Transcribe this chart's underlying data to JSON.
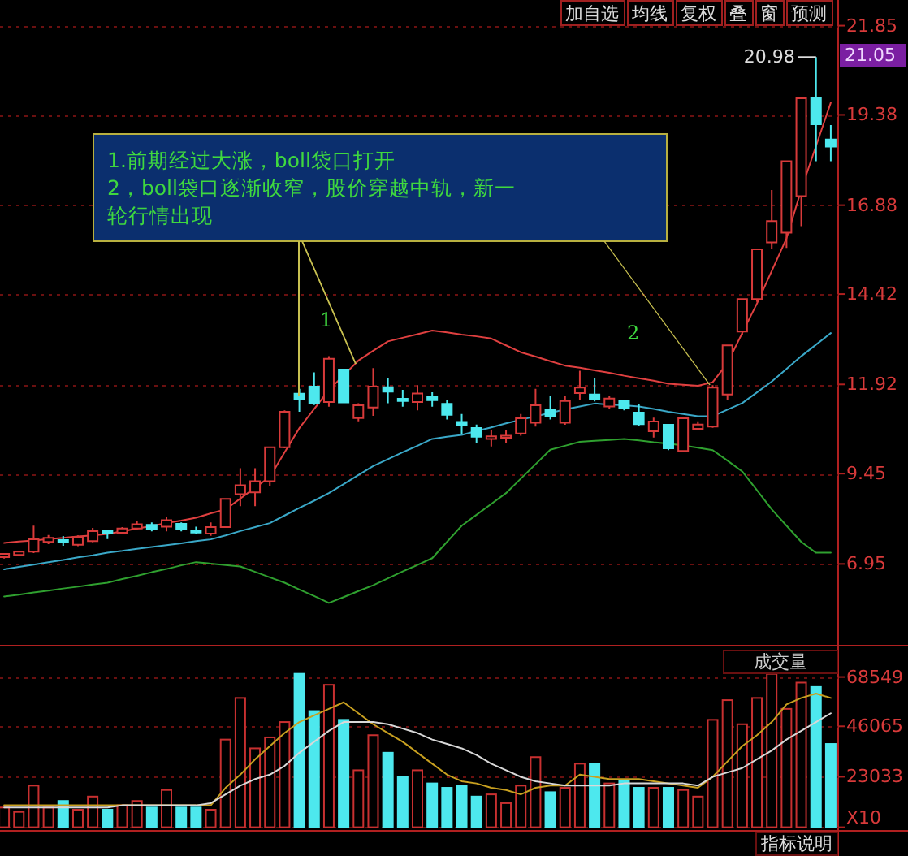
{
  "chart_data": [
    {
      "type": "candlestick",
      "categories": [
        null,
        null,
        null,
        null,
        null,
        null,
        null,
        null,
        null,
        null,
        null,
        null,
        null,
        null,
        null,
        null,
        null,
        null,
        null,
        null,
        null,
        null,
        null,
        null,
        null,
        null,
        null,
        null,
        null,
        null,
        null,
        null,
        null,
        null,
        null,
        null,
        null,
        null,
        null,
        null,
        null,
        null,
        null,
        null,
        null,
        null,
        null,
        null,
        null,
        null,
        null,
        null,
        null,
        null,
        null,
        null,
        null
      ],
      "ohlc": [
        [
          7.14,
          7.25,
          7.1,
          7.23
        ],
        [
          7.2,
          7.32,
          7.16,
          7.29
        ],
        [
          7.29,
          8.01,
          7.25,
          7.63
        ],
        [
          7.56,
          7.75,
          7.5,
          7.67
        ],
        [
          7.61,
          7.72,
          7.45,
          7.56
        ],
        [
          7.48,
          7.74,
          7.44,
          7.7
        ],
        [
          7.58,
          7.95,
          7.55,
          7.86
        ],
        [
          7.86,
          7.9,
          7.64,
          7.79
        ],
        [
          7.81,
          7.97,
          7.78,
          7.93
        ],
        [
          7.93,
          8.15,
          7.9,
          8.05
        ],
        [
          8.03,
          8.1,
          7.85,
          7.92
        ],
        [
          7.98,
          8.25,
          7.85,
          8.16
        ],
        [
          8.06,
          8.1,
          7.85,
          7.92
        ],
        [
          7.88,
          7.98,
          7.77,
          7.82
        ],
        [
          7.79,
          8.1,
          7.73,
          7.97
        ],
        [
          7.97,
          8.75,
          7.95,
          8.75
        ],
        [
          8.88,
          9.6,
          8.55,
          9.13
        ],
        [
          8.93,
          9.6,
          8.55,
          9.24
        ],
        [
          9.24,
          10.18,
          9.1,
          10.18
        ],
        [
          10.18,
          11.2,
          10.15,
          11.16
        ],
        [
          11.66,
          11.8,
          11.16,
          11.5
        ],
        [
          11.86,
          12.25,
          11.35,
          11.4
        ],
        [
          11.43,
          12.7,
          11.3,
          12.63
        ],
        [
          12.33,
          12.33,
          11.4,
          11.42
        ],
        [
          10.99,
          11.4,
          10.9,
          11.34
        ],
        [
          11.28,
          12.37,
          11.05,
          11.86
        ],
        [
          11.84,
          12.1,
          11.4,
          11.72
        ],
        [
          11.52,
          11.77,
          11.3,
          11.46
        ],
        [
          11.43,
          11.9,
          11.2,
          11.67
        ],
        [
          11.57,
          11.7,
          11.3,
          11.48
        ],
        [
          11.38,
          11.5,
          10.95,
          11.08
        ],
        [
          10.88,
          11.1,
          10.55,
          10.78
        ],
        [
          10.71,
          10.81,
          10.3,
          10.47
        ],
        [
          10.41,
          10.66,
          10.2,
          10.48
        ],
        [
          10.44,
          10.66,
          10.3,
          10.5
        ],
        [
          10.56,
          11.1,
          10.5,
          10.98
        ],
        [
          10.86,
          11.8,
          10.75,
          11.34
        ],
        [
          11.23,
          11.6,
          10.95,
          11.04
        ],
        [
          10.86,
          11.6,
          10.8,
          11.46
        ],
        [
          11.68,
          12.3,
          11.5,
          11.83
        ],
        [
          11.64,
          12.1,
          11.45,
          11.52
        ],
        [
          11.31,
          11.6,
          11.25,
          11.53
        ],
        [
          11.46,
          11.5,
          11.2,
          11.25
        ],
        [
          11.14,
          11.37,
          10.77,
          10.82
        ],
        [
          10.62,
          11.0,
          10.45,
          10.89
        ],
        [
          10.8,
          10.8,
          10.1,
          10.15
        ],
        [
          10.08,
          10.98,
          10.05,
          10.98
        ],
        [
          10.69,
          10.9,
          10.65,
          10.81
        ],
        [
          10.75,
          11.9,
          10.72,
          11.83
        ],
        [
          11.64,
          13.0,
          11.5,
          13.0
        ],
        [
          13.38,
          14.28,
          13.3,
          14.28
        ],
        [
          14.28,
          15.66,
          14.2,
          15.66
        ],
        [
          15.85,
          17.3,
          15.66,
          16.44
        ],
        [
          16.12,
          18.1,
          15.7,
          18.1
        ],
        [
          17.13,
          19.84,
          16.3,
          19.84
        ],
        [
          19.84,
          20.98,
          18.1,
          19.12
        ],
        [
          18.7,
          19.1,
          18.1,
          18.5
        ]
      ],
      "colors": [
        "#d83a3a",
        "#d83a3a",
        "#d83a3a",
        "#d83a3a",
        "#4de8ee",
        "#d83a3a",
        "#d83a3a",
        "#4de8ee",
        "#d83a3a",
        "#d83a3a",
        "#4de8ee",
        "#d83a3a",
        "#4de8ee",
        "#4de8ee",
        "#d83a3a",
        "#d83a3a",
        "#d83a3a",
        "#d83a3a",
        "#d83a3a",
        "#d83a3a",
        "#4de8ee",
        "#4de8ee",
        "#d83a3a",
        "#4de8ee",
        "#d83a3a",
        "#d83a3a",
        "#4de8ee",
        "#4de8ee",
        "#d83a3a",
        "#4de8ee",
        "#4de8ee",
        "#4de8ee",
        "#4de8ee",
        "#d83a3a",
        "#d83a3a",
        "#d83a3a",
        "#d83a3a",
        "#4de8ee",
        "#d83a3a",
        "#d83a3a",
        "#4de8ee",
        "#d83a3a",
        "#4de8ee",
        "#4de8ee",
        "#d83a3a",
        "#4de8ee",
        "#d83a3a",
        "#d83a3a",
        "#d83a3a",
        "#d83a3a",
        "#d83a3a",
        "#d83a3a",
        "#d83a3a",
        "#d83a3a",
        "#d83a3a",
        "#4de8ee",
        "#4de8ee"
      ],
      "series": [
        {
          "type": "line",
          "color": "#e04040",
          "values": [
            7.53,
            7.57,
            7.6,
            7.64,
            7.67,
            7.71,
            7.74,
            7.78,
            7.85,
            7.93,
            8.0,
            8.08,
            8.15,
            8.23,
            8.35,
            8.46,
            8.76,
            9.06,
            9.36,
            10.04,
            10.71,
            11.24,
            11.76,
            12.17,
            12.58,
            12.85,
            13.11,
            13.21,
            13.31,
            13.41,
            13.36,
            13.3,
            13.25,
            13.19,
            13.0,
            12.81,
            12.69,
            12.56,
            12.44,
            12.38,
            12.31,
            12.24,
            12.16,
            12.09,
            12.02,
            11.94,
            11.91,
            11.88,
            11.98,
            12.51,
            13.34,
            14.16,
            15.06,
            15.96,
            17.31,
            18.52,
            19.72
          ]
        },
        {
          "type": "line",
          "color": "#3aa8c8",
          "values": [
            6.8,
            6.87,
            6.93,
            7.0,
            7.06,
            7.13,
            7.19,
            7.26,
            7.31,
            7.37,
            7.42,
            7.47,
            7.52,
            7.58,
            7.63,
            7.74,
            7.86,
            7.97,
            8.08,
            8.29,
            8.5,
            8.7,
            8.91,
            9.16,
            9.41,
            9.66,
            9.85,
            10.04,
            10.22,
            10.41,
            10.47,
            10.52,
            10.63,
            10.73,
            10.84,
            10.94,
            11.04,
            11.13,
            11.23,
            11.31,
            11.39,
            11.36,
            11.34,
            11.31,
            11.24,
            11.16,
            11.1,
            11.04,
            11.04,
            11.22,
            11.4,
            11.7,
            12.0,
            12.35,
            12.7,
            13.02,
            13.34
          ]
        },
        {
          "type": "line",
          "color": "#2fa02f",
          "values": [
            6.05,
            6.1,
            6.16,
            6.21,
            6.27,
            6.32,
            6.38,
            6.43,
            6.53,
            6.62,
            6.72,
            6.81,
            6.91,
            7.0,
            6.96,
            6.92,
            6.88,
            6.73,
            6.58,
            6.43,
            6.24,
            6.06,
            5.87,
            6.03,
            6.2,
            6.36,
            6.55,
            6.74,
            6.92,
            7.11,
            7.56,
            8.01,
            8.31,
            8.61,
            8.91,
            9.31,
            9.71,
            10.11,
            10.22,
            10.33,
            10.36,
            10.38,
            10.41,
            10.37,
            10.32,
            10.28,
            10.23,
            10.17,
            10.1,
            9.81,
            9.51,
            8.99,
            8.46,
            8.01,
            7.56,
            7.26,
            7.26
          ]
        }
      ],
      "ylim": [
        4.8,
        22.56
      ],
      "yticks": [
        6.95,
        9.45,
        11.92,
        14.42,
        16.88,
        19.38,
        21.85
      ],
      "grid": "y",
      "tick_labels": "y",
      "annotations": [
        "1.前期经过大涨，boll袋口打开",
        "2，boll袋口逐渐收窄，股价穿越中轨，新一轮行情出现",
        "1",
        "2",
        "20.98",
        "21.05",
        "加自选",
        "均线",
        "复权",
        "叠",
        "窗",
        "预测"
      ]
    },
    {
      "type": "bar",
      "title": "成交量",
      "categories": [
        null,
        null,
        null,
        null,
        null,
        null,
        null,
        null,
        null,
        null,
        null,
        null,
        null,
        null,
        null,
        null,
        null,
        null,
        null,
        null,
        null,
        null,
        null,
        null,
        null,
        null,
        null,
        null,
        null,
        null,
        null,
        null,
        null,
        null,
        null,
        null,
        null,
        null,
        null,
        null,
        null,
        null,
        null,
        null,
        null,
        null,
        null,
        null,
        null,
        null,
        null,
        null,
        null,
        null,
        null,
        null,
        null
      ],
      "values": [
        9000,
        7000,
        19000,
        9000,
        12000,
        8000,
        14000,
        8000,
        10000,
        12000,
        9000,
        17000,
        9000,
        9000,
        8000,
        40000,
        59000,
        36000,
        41000,
        48000,
        70000,
        53000,
        65000,
        49000,
        26000,
        42000,
        34000,
        23000,
        26000,
        20000,
        18000,
        19000,
        14000,
        15000,
        11000,
        19000,
        32000,
        16000,
        18000,
        29000,
        29000,
        20000,
        21000,
        18000,
        18000,
        18000,
        17000,
        14000,
        49000,
        58000,
        47000,
        59000,
        70000,
        54000,
        66000,
        64000,
        38000
      ],
      "colors": [
        "#c83030",
        "#c83030",
        "#c83030",
        "#c83030",
        "#4de8ee",
        "#c83030",
        "#c83030",
        "#4de8ee",
        "#c83030",
        "#c83030",
        "#4de8ee",
        "#c83030",
        "#4de8ee",
        "#4de8ee",
        "#c83030",
        "#c83030",
        "#c83030",
        "#c83030",
        "#c83030",
        "#c83030",
        "#4de8ee",
        "#4de8ee",
        "#c83030",
        "#4de8ee",
        "#c83030",
        "#c83030",
        "#4de8ee",
        "#4de8ee",
        "#c83030",
        "#4de8ee",
        "#4de8ee",
        "#4de8ee",
        "#4de8ee",
        "#c83030",
        "#c83030",
        "#c83030",
        "#c83030",
        "#4de8ee",
        "#c83030",
        "#c83030",
        "#4de8ee",
        "#c83030",
        "#4de8ee",
        "#4de8ee",
        "#c83030",
        "#4de8ee",
        "#c83030",
        "#c83030",
        "#c83030",
        "#c83030",
        "#c83030",
        "#c83030",
        "#c83030",
        "#c83030",
        "#c83030",
        "#4de8ee",
        "#4de8ee"
      ],
      "series": [
        {
          "type": "line",
          "color": "#c8a020",
          "values": [
            10000,
            10000,
            10000,
            10000,
            10000,
            10000,
            10000,
            10000,
            10000,
            10000,
            10000,
            10000,
            10000,
            10000,
            10000,
            18000,
            24000,
            31000,
            37000,
            43000,
            48000,
            51000,
            54000,
            57000,
            52000,
            47000,
            43000,
            39000,
            34000,
            29000,
            24000,
            21000,
            20000,
            18000,
            17000,
            15000,
            18000,
            19000,
            19000,
            24000,
            23000,
            22000,
            22000,
            22000,
            21000,
            20000,
            19000,
            18000,
            23000,
            30000,
            37000,
            42000,
            48000,
            56000,
            59000,
            61000,
            59000
          ]
        },
        {
          "type": "line",
          "color": "#d8d8d8",
          "values": [
            9000,
            9000,
            9000,
            9000,
            9000,
            9000,
            9000,
            9000,
            10000,
            10000,
            10000,
            10000,
            10000,
            10000,
            11000,
            15000,
            19000,
            22000,
            24000,
            28000,
            34000,
            39000,
            44000,
            48000,
            48000,
            48000,
            47000,
            45000,
            43000,
            40000,
            38000,
            36000,
            33000,
            29000,
            26000,
            23000,
            21000,
            20000,
            19000,
            19000,
            19000,
            19000,
            20000,
            20000,
            20000,
            20000,
            20000,
            19000,
            23000,
            25000,
            27000,
            31000,
            35000,
            40000,
            44000,
            48000,
            52000
          ]
        }
      ],
      "ylim": [
        0,
        81000
      ],
      "yticks": [
        {
          "value": 0,
          "label": "X10"
        },
        23033,
        46065,
        68549
      ],
      "grid": "y",
      "tick_labels": "y",
      "annotations": [
        "指标说明"
      ]
    }
  ]
}
